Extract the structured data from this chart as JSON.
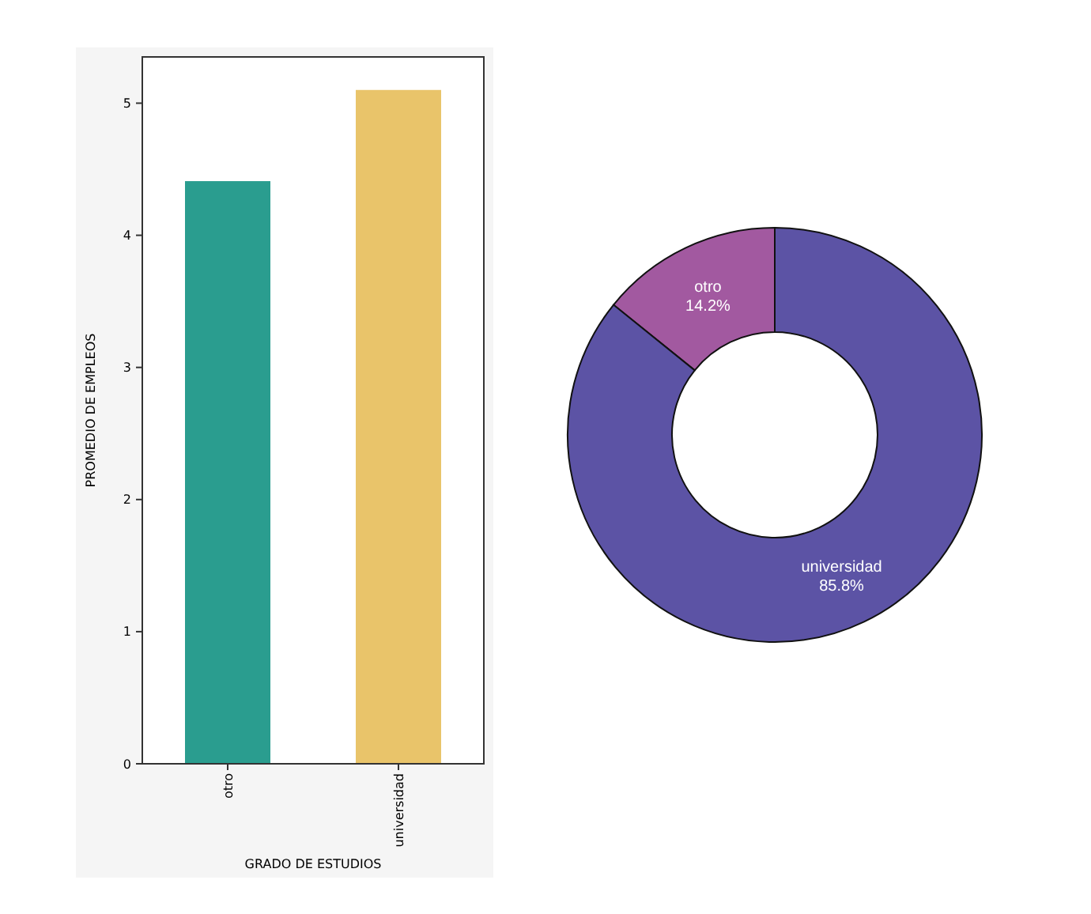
{
  "chart_data": [
    {
      "type": "bar",
      "categories": [
        "otro",
        "universidad"
      ],
      "colors": [
        "#2a9d8f",
        "#e9c46a"
      ],
      "values": [
        4.41,
        5.1
      ],
      "xlabel": "GRADO DE ESTUDIOS",
      "ylabel": "PROMEDIO DE EMPLEOS",
      "ylim": [
        0,
        5.35
      ],
      "yticks": [
        0,
        1,
        2,
        3,
        4,
        5
      ],
      "grid": false
    },
    {
      "type": "donut",
      "categories": [
        "otro",
        "universidad"
      ],
      "values": [
        14.2,
        85.8
      ],
      "colors": [
        "#a259a0",
        "#5c53a5"
      ],
      "value_labels": [
        "14.2%",
        "85.8%"
      ]
    }
  ]
}
